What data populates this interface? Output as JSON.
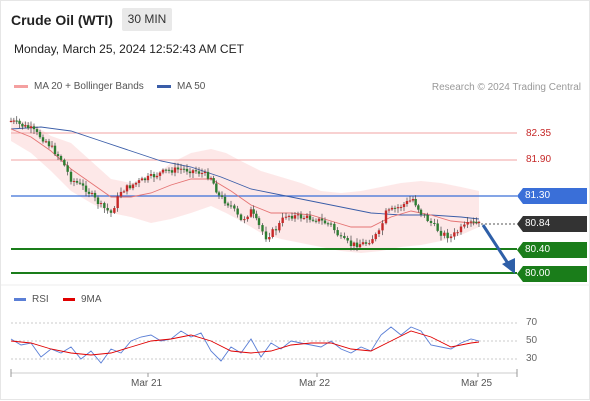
{
  "header": {
    "instrument": "Crude Oil (WTI)",
    "timeframe": "30 MIN",
    "datetime": "Monday, March 25, 2024 12:52:43 AM CET"
  },
  "legend": {
    "ma20_label": "MA 20 + Bollinger Bands",
    "ma50_label": "MA 50",
    "ma20_color": "#f4a0a0",
    "ma50_color": "#3a5da8",
    "credit": "Research © 2024 Trading Central"
  },
  "levels": {
    "r2": "82.35",
    "r1": "81.90",
    "pivot": "81.30",
    "last": "80.84",
    "s1": "80.40",
    "s2": "80.00"
  },
  "rsi_panel": {
    "rsi_label": "RSI",
    "ma_label": "9MA",
    "rsi_color": "#5b7fd6",
    "ma_color": "#e00000",
    "ticks": [
      "70",
      "50",
      "30"
    ]
  },
  "x_axis": {
    "ticks": [
      "Mar 21",
      "Mar 22",
      "Mar 25"
    ]
  },
  "colors": {
    "up": "#c62828",
    "down": "#2e7d32",
    "resistance": "#e57373",
    "pivot": "#3a6fd8",
    "support": "#1a7d1a",
    "last_tag": "#333333",
    "forecast_arrow": "#2e5fa8"
  }
}
